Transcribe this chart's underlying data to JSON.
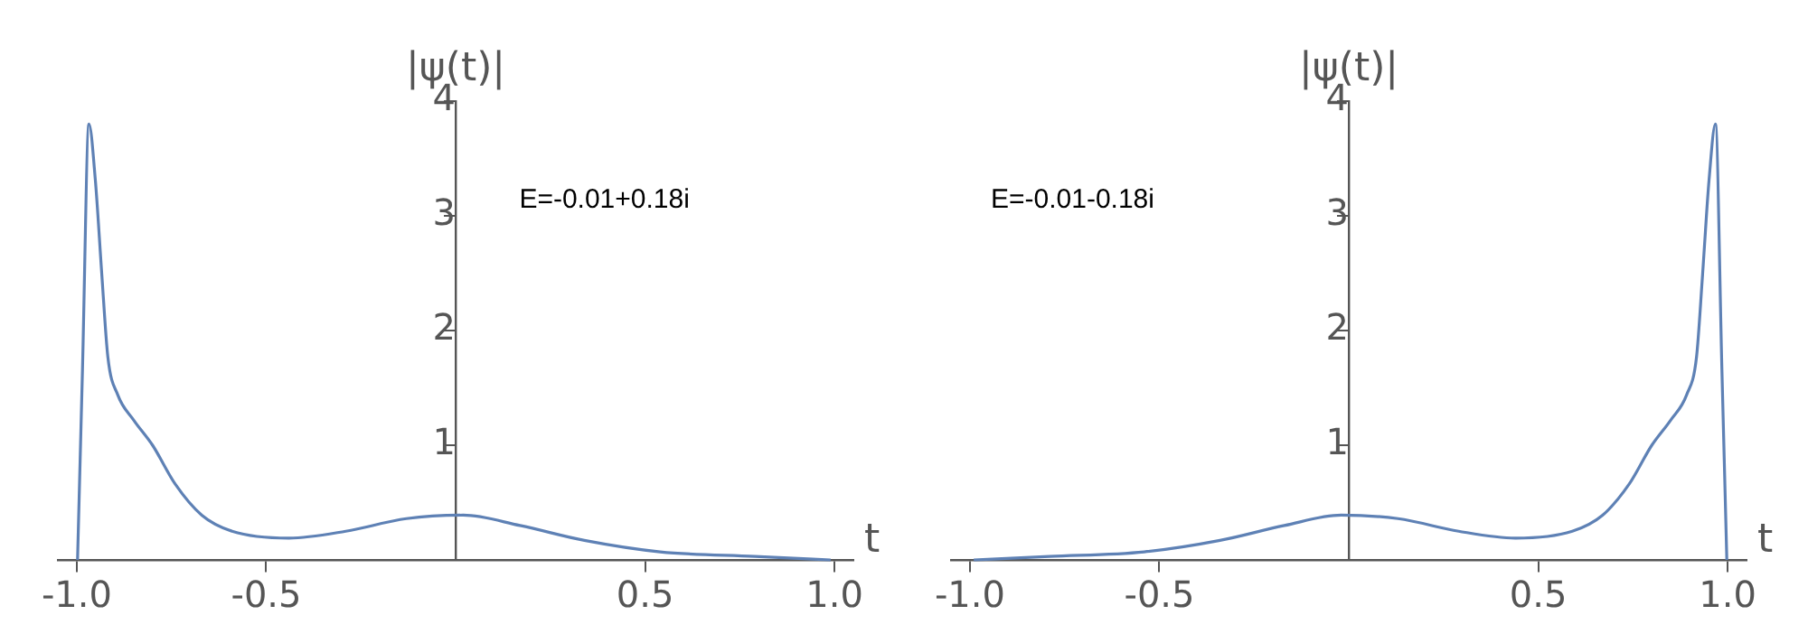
{
  "chart_data": [
    {
      "type": "line",
      "ylabel": "|ψ(t)|",
      "xlabel": "t",
      "annotations": [
        "E=-0.01+0.18i"
      ],
      "xlim": [
        -1.05,
        1.05
      ],
      "ylim": [
        0,
        4
      ],
      "xticks": [
        {
          "value": -1,
          "label": "-1.0"
        },
        {
          "value": -0.5,
          "label": "-0.5"
        },
        {
          "value": 0.5,
          "label": "0.5"
        },
        {
          "value": 1,
          "label": "1.0"
        }
      ],
      "yticks": [
        1,
        2,
        3,
        4
      ],
      "grid": false,
      "legend": false,
      "marker": "none",
      "series": [
        {
          "color": "#5e81b5",
          "x": [
            -0.998,
            -0.985,
            -0.968,
            -0.951,
            -0.934,
            -0.918,
            -0.892,
            -0.85,
            -0.8,
            -0.74,
            -0.67,
            -0.59,
            -0.44,
            -0.29,
            -0.13,
            0.02,
            0.17,
            0.34,
            0.54,
            0.79,
            0.99
          ],
          "values": [
            0,
            1.66,
            3.8,
            3.31,
            2.49,
            1.77,
            1.44,
            1.22,
            1.0,
            0.66,
            0.39,
            0.25,
            0.19,
            0.25,
            0.36,
            0.39,
            0.3,
            0.17,
            0.07,
            0.03,
            0
          ]
        }
      ]
    },
    {
      "type": "line",
      "ylabel": "|ψ(t)|",
      "xlabel": "t",
      "annotations": [
        "E=-0.01-0.18i"
      ],
      "xlim": [
        -1.05,
        1.05
      ],
      "ylim": [
        0,
        4
      ],
      "xticks": [
        {
          "value": -1,
          "label": "-1.0"
        },
        {
          "value": -0.5,
          "label": "-0.5"
        },
        {
          "value": 0.5,
          "label": "0.5"
        },
        {
          "value": 1,
          "label": "1.0"
        }
      ],
      "yticks": [
        1,
        2,
        3,
        4
      ],
      "grid": false,
      "legend": false,
      "marker": "none",
      "series": [
        {
          "color": "#5e81b5",
          "x": [
            -0.99,
            -0.79,
            -0.54,
            -0.34,
            -0.17,
            -0.02,
            0.13,
            0.29,
            0.44,
            0.59,
            0.67,
            0.74,
            0.8,
            0.85,
            0.892,
            0.918,
            0.934,
            0.951,
            0.968,
            0.985,
            0.998
          ],
          "values": [
            0,
            0.03,
            0.07,
            0.17,
            0.3,
            0.39,
            0.36,
            0.25,
            0.19,
            0.25,
            0.39,
            0.66,
            1.0,
            1.22,
            1.44,
            1.77,
            2.49,
            3.31,
            3.8,
            1.66,
            0
          ]
        }
      ]
    }
  ]
}
